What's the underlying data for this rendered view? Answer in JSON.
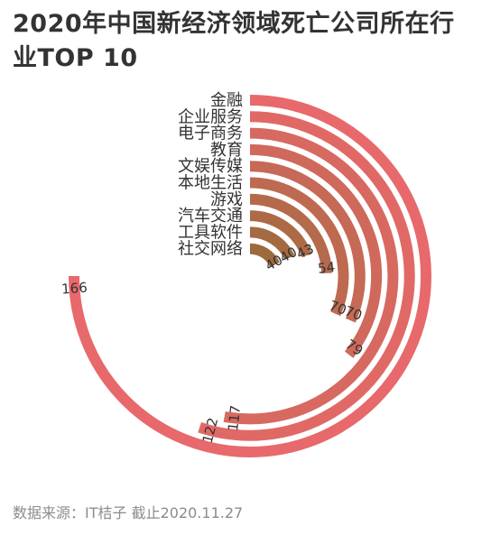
{
  "title": "2020年中国新经济领域死亡公司所在行业TOP 10",
  "source": "数据来源：IT桔子 截止2020.11.27",
  "chart_data": {
    "type": "radial-bar",
    "title": "2020年中国新经济领域死亡公司所在行业TOP 10",
    "categories": [
      "金融",
      "企业服务",
      "电子商务",
      "教育",
      "文娱传媒",
      "本地生活",
      "游戏",
      "汽车交通",
      "工具软件",
      "社交网络"
    ],
    "values": [
      166,
      122,
      117,
      79,
      70,
      70,
      54,
      43,
      40,
      40
    ],
    "max": 166,
    "data_labels": true,
    "colors": {
      "start": "#9c6a3c",
      "end": "#e8696b"
    }
  }
}
